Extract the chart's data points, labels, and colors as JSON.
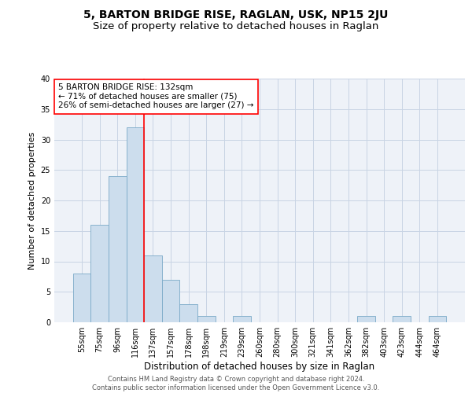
{
  "title": "5, BARTON BRIDGE RISE, RAGLAN, USK, NP15 2JU",
  "subtitle": "Size of property relative to detached houses in Raglan",
  "xlabel": "Distribution of detached houses by size in Raglan",
  "ylabel": "Number of detached properties",
  "bar_color": "#ccdded",
  "bar_edge_color": "#7aaac8",
  "bar_edge_width": 0.6,
  "vline_color": "red",
  "vline_linewidth": 1.2,
  "vline_position": 3.5,
  "categories": [
    "55sqm",
    "75sqm",
    "96sqm",
    "116sqm",
    "137sqm",
    "157sqm",
    "178sqm",
    "198sqm",
    "219sqm",
    "239sqm",
    "260sqm",
    "280sqm",
    "300sqm",
    "321sqm",
    "341sqm",
    "362sqm",
    "382sqm",
    "403sqm",
    "423sqm",
    "444sqm",
    "464sqm"
  ],
  "values": [
    8,
    16,
    24,
    32,
    11,
    7,
    3,
    1,
    0,
    1,
    0,
    0,
    0,
    0,
    0,
    0,
    1,
    0,
    1,
    0,
    1
  ],
  "ylim": [
    0,
    40
  ],
  "yticks": [
    0,
    5,
    10,
    15,
    20,
    25,
    30,
    35,
    40
  ],
  "annotation_title": "5 BARTON BRIDGE RISE: 132sqm",
  "annotation_line1": "← 71% of detached houses are smaller (75)",
  "annotation_line2": "26% of semi-detached houses are larger (27) →",
  "annotation_box_color": "white",
  "annotation_box_edge_color": "red",
  "background_color": "#eef2f8",
  "footer_line1": "Contains HM Land Registry data © Crown copyright and database right 2024.",
  "footer_line2": "Contains public sector information licensed under the Open Government Licence v3.0.",
  "grid_color": "#c8d4e4",
  "title_fontsize": 10,
  "subtitle_fontsize": 9.5,
  "xlabel_fontsize": 8.5,
  "ylabel_fontsize": 8,
  "tick_fontsize": 7,
  "annotation_fontsize": 7.5,
  "footer_fontsize": 6
}
